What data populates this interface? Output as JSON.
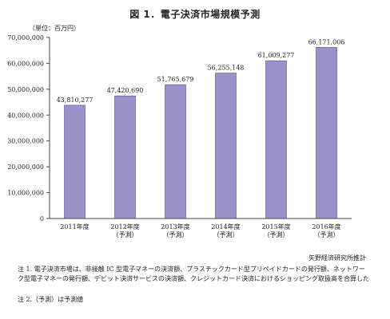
{
  "chart_data": {
    "type": "bar",
    "title": "図 1．電子決済市場規模予測",
    "unit_label": "（単位：百万円）",
    "categories": [
      [
        "2011年度"
      ],
      [
        "2012年度",
        "（予測）"
      ],
      [
        "2013年度",
        "（予測）"
      ],
      [
        "2014年度",
        "（予測）"
      ],
      [
        "2015年度",
        "（予測）"
      ],
      [
        "2016年度",
        "（予測）"
      ]
    ],
    "values": [
      43810277,
      47420690,
      51765679,
      56255148,
      61009277,
      66171006
    ],
    "value_labels": [
      "43,810,277",
      "47,420,690",
      "51,765,679",
      "56,255,148",
      "61,009,277",
      "66,171,006"
    ],
    "ylim": [
      0,
      70000000
    ],
    "yticks": [
      0,
      10000000,
      20000000,
      30000000,
      40000000,
      50000000,
      60000000,
      70000000
    ],
    "ytick_labels": [
      "0",
      "10,000,000",
      "20,000,000",
      "30,000,000",
      "40,000,000",
      "50,000,000",
      "60,000,000",
      "70,000,000"
    ],
    "grid": false,
    "bar_color": "#9a92c8"
  },
  "source": "矢野経済研究所推計",
  "note1": "注 1. 電子決済市場は、非接触 IC 型電子マネーの決済額、プラスチックカード型プリペイドカードの発行額、ネットワーク型電子マネーの発行額、デビット決済サービスの決済額、クレジットカード決済におけるショッピング取扱高を合算した",
  "note2": "注 2.（予測）は予測値"
}
